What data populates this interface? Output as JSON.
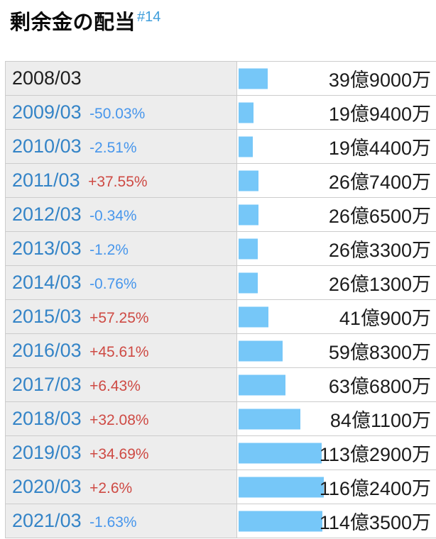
{
  "header": {
    "title": "剰余金の配当",
    "anchor_label": "#14"
  },
  "colors": {
    "bar": "#76c7f8",
    "year_link": "#3484c7",
    "percent_down": "#4796ec",
    "percent_up": "#ce4a44",
    "row_label_bg": "#ededed",
    "table_border": "#cccccc",
    "anchor_link": "#3f9edb",
    "value_text": "#1c1c1c"
  },
  "chart_data": {
    "type": "bar",
    "orientation": "horizontal",
    "title": "剰余金の配当",
    "unit": "円",
    "legend": "none",
    "categories": [
      "2008/03",
      "2009/03",
      "2010/03",
      "2011/03",
      "2012/03",
      "2013/03",
      "2014/03",
      "2015/03",
      "2016/03",
      "2017/03",
      "2018/03",
      "2019/03",
      "2020/03",
      "2021/03"
    ],
    "values_oku": [
      39.9,
      19.94,
      19.44,
      26.74,
      26.65,
      26.33,
      26.13,
      41.09,
      59.83,
      63.68,
      84.11,
      113.29,
      116.24,
      114.35
    ],
    "value_labels": [
      "39億9000万",
      "19億9400万",
      "19億4400万",
      "26億7400万",
      "26億6500万",
      "26億3300万",
      "26億1300万",
      "41億900万",
      "59億8300万",
      "63億6800万",
      "84億1100万",
      "113億2900万",
      "116億2400万",
      "114億3500万"
    ],
    "change_labels": [
      "",
      "-50.03%",
      "-2.51%",
      "+37.55%",
      "-0.34%",
      "-1.2%",
      "-0.76%",
      "+57.25%",
      "+45.61%",
      "+6.43%",
      "+32.08%",
      "+34.69%",
      "+2.6%",
      "-1.63%"
    ],
    "xlim_oku": [
      0,
      116.24
    ],
    "bar_color": "#76c7f8"
  }
}
